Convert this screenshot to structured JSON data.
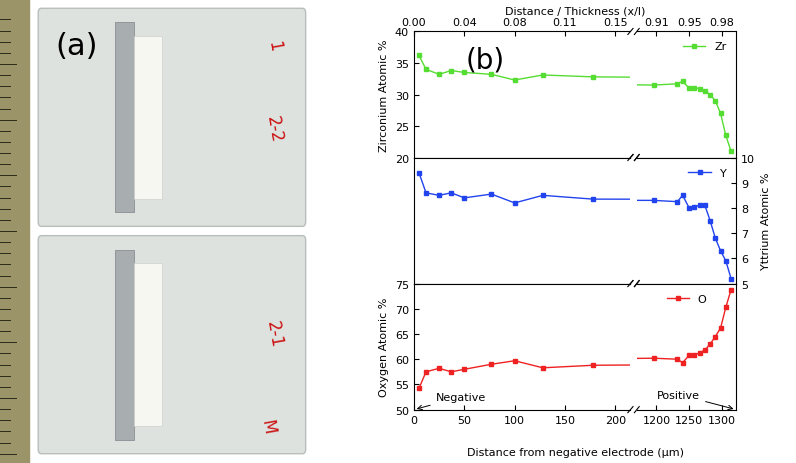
{
  "photo": {
    "label": "(a)",
    "texts": [
      "1",
      "2-2",
      "2-1",
      "M"
    ]
  },
  "chart_label": "(b)",
  "chart_data": [
    {
      "type": "line",
      "x": [
        5,
        12,
        25,
        37,
        50,
        77,
        100,
        128,
        178,
        1196,
        1232,
        1240,
        1250,
        1258,
        1266,
        1274,
        1282,
        1290,
        1298,
        1306,
        1314
      ],
      "xlim": [
        [
          0,
          215
        ],
        [
          1170,
          1322
        ]
      ],
      "x2label": "Distance / Thickness (x/l)",
      "x2ticks": [
        [
          {
            "value": 0,
            "label": "0.00"
          },
          {
            "value": 50,
            "label": "0.04"
          },
          {
            "value": 100,
            "label": "0.08"
          },
          {
            "value": 150,
            "label": "0.11"
          },
          {
            "value": 200,
            "label": "0.15"
          }
        ],
        [
          {
            "value": 1200,
            "label": "0.91"
          },
          {
            "value": 1250,
            "label": "0.95"
          },
          {
            "value": 1300,
            "label": "0.98"
          }
        ]
      ],
      "ylabel": "Zirconium Atomic %",
      "ylim": [
        20,
        40
      ],
      "yticks": [
        20,
        25,
        30,
        35,
        40
      ],
      "legend": "upper right",
      "series": [
        {
          "name": "Zr",
          "color": "#55dd33",
          "marker": "square",
          "line_style": "solid",
          "values": [
            36.2,
            34.0,
            33.2,
            33.8,
            33.5,
            33.2,
            32.3,
            33.1,
            32.8,
            31.5,
            31.7,
            32.1,
            31.0,
            31.1,
            30.9,
            30.6,
            30.0,
            29.0,
            27.0,
            23.5,
            21.0
          ]
        }
      ]
    },
    {
      "type": "line",
      "x": [
        5,
        12,
        25,
        37,
        50,
        77,
        100,
        128,
        178,
        1196,
        1232,
        1240,
        1250,
        1258,
        1266,
        1274,
        1282,
        1290,
        1298,
        1306,
        1314
      ],
      "xlim": [
        [
          0,
          215
        ],
        [
          1170,
          1322
        ]
      ],
      "y2label": "Yttrium Atomic %",
      "y2lim": [
        5,
        10
      ],
      "y2ticks": [
        5,
        6,
        7,
        8,
        9,
        10
      ],
      "legend": "upper right",
      "series": [
        {
          "name": "Y",
          "color": "#2244ee",
          "marker": "square",
          "line_style": "solid",
          "axis": "y2",
          "values": [
            9.4,
            8.6,
            8.5,
            8.6,
            8.4,
            8.55,
            8.2,
            8.5,
            8.35,
            8.3,
            8.25,
            8.5,
            8.0,
            8.05,
            8.1,
            8.1,
            7.5,
            6.8,
            6.3,
            5.9,
            5.2
          ]
        }
      ]
    },
    {
      "type": "line",
      "x": [
        5,
        12,
        25,
        37,
        50,
        77,
        100,
        128,
        178,
        1196,
        1232,
        1240,
        1250,
        1258,
        1266,
        1274,
        1282,
        1290,
        1298,
        1306,
        1314
      ],
      "xlim": [
        [
          0,
          215
        ],
        [
          1170,
          1322
        ]
      ],
      "xticks": [
        [
          0,
          50,
          100,
          150,
          200
        ],
        [
          1200,
          1250,
          1300
        ]
      ],
      "xlabel": "Distance from negative electrode (µm)",
      "ylabel": "Oxygen Atomic %",
      "ylim": [
        50,
        75
      ],
      "yticks": [
        50,
        55,
        60,
        65,
        70,
        75
      ],
      "legend": "upper center",
      "annotations": [
        "Negative",
        "Positive"
      ],
      "series": [
        {
          "name": "O",
          "color": "#ee2222",
          "marker": "square",
          "line_style": "solid",
          "values": [
            54.2,
            57.5,
            58.2,
            57.5,
            58.0,
            59.0,
            59.7,
            58.3,
            58.8,
            60.2,
            60.0,
            59.3,
            60.8,
            60.8,
            61.3,
            61.8,
            63.0,
            64.5,
            66.2,
            70.3,
            73.8
          ]
        }
      ]
    }
  ]
}
